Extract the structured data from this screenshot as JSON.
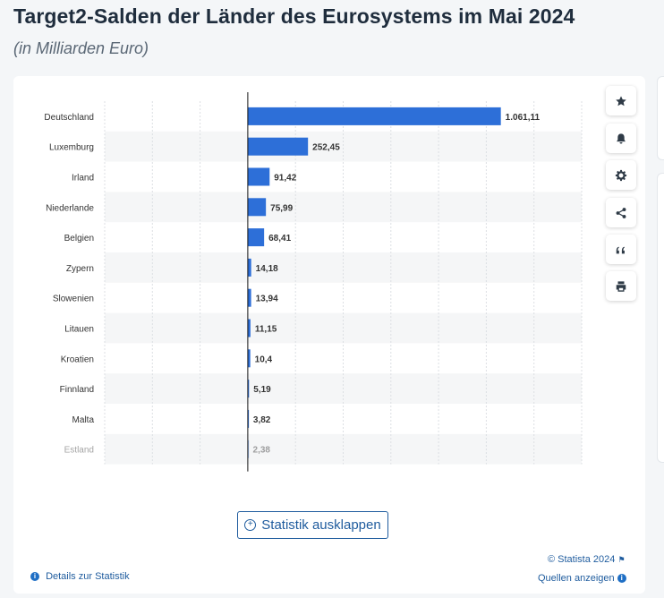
{
  "header": {
    "title": "Target2-Salden der Länder des Eurosystems im Mai 2024",
    "subtitle": "(in Milliarden Euro)"
  },
  "colors": {
    "bar": "#2d6fd8",
    "accent": "#1f5c9e",
    "stripe": "#f5f6f7"
  },
  "chart_data": {
    "type": "bar",
    "orientation": "horizontal",
    "categories": [
      "Deutschland",
      "Luxemburg",
      "Irland",
      "Niederlande",
      "Belgien",
      "Zypern",
      "Slowenien",
      "Litauen",
      "Kroatien",
      "Finnland",
      "Malta",
      "Estland"
    ],
    "values": [
      1061.11,
      252.45,
      91.42,
      75.99,
      68.41,
      14.18,
      13.94,
      11.15,
      10.4,
      5.19,
      3.82,
      2.38
    ],
    "value_labels": [
      "1.061,11",
      "252,45",
      "91,42",
      "75,99",
      "68,41",
      "14,18",
      "13,94",
      "11,15",
      "10,4",
      "5,19",
      "3,82",
      "2,38"
    ],
    "xlim": [
      -600,
      1400
    ],
    "grid": true,
    "title": "Target2-Salden der Länder des Eurosystems im Mai 2024",
    "xlabel": "",
    "ylabel": ""
  },
  "toolbar": {
    "buttons": [
      {
        "name": "favorite-button",
        "icon": "star-icon"
      },
      {
        "name": "notification-button",
        "icon": "bell-icon"
      },
      {
        "name": "settings-button",
        "icon": "gear-icon"
      },
      {
        "name": "share-button",
        "icon": "share-icon"
      },
      {
        "name": "cite-button",
        "icon": "quote-icon"
      },
      {
        "name": "print-button",
        "icon": "printer-icon"
      }
    ]
  },
  "footer": {
    "expand_label": "Statistik ausklappen",
    "copyright": "© Statista 2024",
    "sources_label": "Quellen anzeigen",
    "details_label": "Details zur Statistik"
  }
}
